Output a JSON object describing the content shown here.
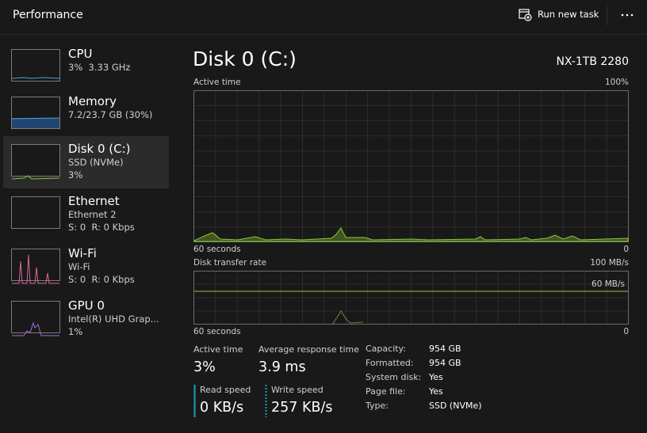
{
  "header": {
    "title": "Performance",
    "action": "Run new task"
  },
  "sidebar": [
    {
      "name": "CPU",
      "lines": [
        "3%  3.33 GHz"
      ]
    },
    {
      "name": "Memory",
      "lines": [
        "7.2/23.7 GB (30%)"
      ]
    },
    {
      "name": "Disk 0 (C:)",
      "lines": [
        "SSD (NVMe)",
        "3%"
      ]
    },
    {
      "name": "Ethernet",
      "lines": [
        "Ethernet 2",
        "S: 0  R: 0 Kbps"
      ]
    },
    {
      "name": "Wi-Fi",
      "lines": [
        "Wi-Fi",
        "S: 0  R: 0 Kbps"
      ]
    },
    {
      "name": "GPU 0",
      "lines": [
        "Intel(R) UHD Grap...",
        "1%"
      ]
    }
  ],
  "main": {
    "title": "Disk 0 (C:)",
    "model": "NX-1TB 2280",
    "active_time_graph": {
      "label": "Active time",
      "max": "100%",
      "time": "60 seconds",
      "min": "0"
    },
    "transfer_graph": {
      "label": "Disk transfer rate",
      "max": "100 MB/s",
      "scale_line": "60 MB/s",
      "time": "60 seconds",
      "min": "0"
    },
    "stats": [
      {
        "label": "Active time",
        "value": "3%"
      },
      {
        "label": "Average response time",
        "value": "3.9 ms"
      },
      {
        "label": "Read speed",
        "value": "0 KB/s"
      },
      {
        "label": "Write speed",
        "value": "257 KB/s"
      }
    ],
    "properties": [
      [
        "Capacity:",
        "954 GB"
      ],
      [
        "Formatted:",
        "954 GB"
      ],
      [
        "System disk:",
        "Yes"
      ],
      [
        "Page file:",
        "Yes"
      ],
      [
        "Type:",
        "SSD (NVMe)"
      ]
    ]
  }
}
